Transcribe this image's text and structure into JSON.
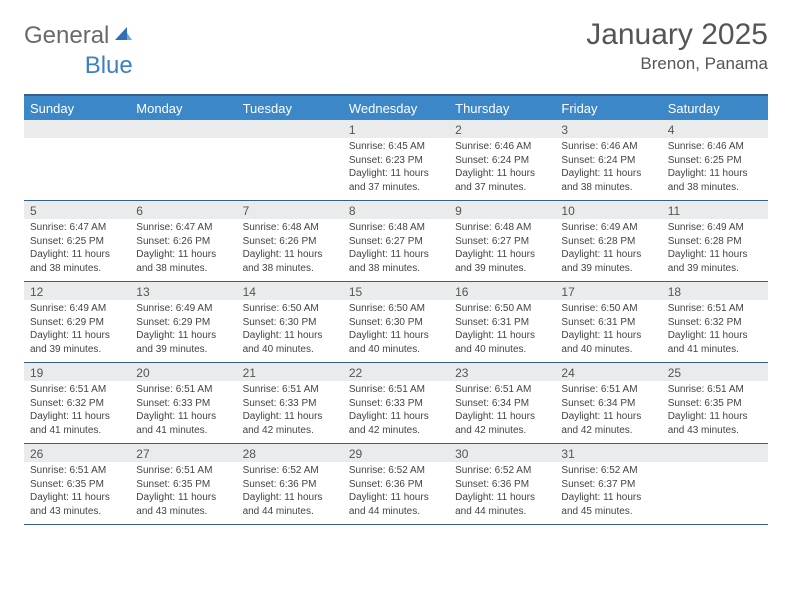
{
  "logo": {
    "part1": "General",
    "part2": "Blue"
  },
  "title": "January 2025",
  "location": "Brenon, Panama",
  "colors": {
    "header_bg": "#3b87c8",
    "header_border_top": "#355f8d",
    "week_divider": "#355f8d",
    "daynum_band_bg": "#e9ebec",
    "text_primary": "#444444",
    "text_muted": "#555555",
    "logo_gray": "#6a6a6a",
    "logo_blue": "#3b7fc4",
    "background": "#ffffff"
  },
  "typography": {
    "title_fontsize": 30,
    "location_fontsize": 17,
    "dayheader_fontsize": 13,
    "daynum_fontsize": 12,
    "body_fontsize": 10
  },
  "day_headers": [
    "Sunday",
    "Monday",
    "Tuesday",
    "Wednesday",
    "Thursday",
    "Friday",
    "Saturday"
  ],
  "labels": {
    "sunrise": "Sunrise:",
    "sunset": "Sunset:",
    "daylight": "Daylight:"
  },
  "weeks": [
    [
      null,
      null,
      null,
      {
        "n": "1",
        "sunrise": "6:45 AM",
        "sunset": "6:23 PM",
        "daylight": "11 hours and 37 minutes."
      },
      {
        "n": "2",
        "sunrise": "6:46 AM",
        "sunset": "6:24 PM",
        "daylight": "11 hours and 37 minutes."
      },
      {
        "n": "3",
        "sunrise": "6:46 AM",
        "sunset": "6:24 PM",
        "daylight": "11 hours and 38 minutes."
      },
      {
        "n": "4",
        "sunrise": "6:46 AM",
        "sunset": "6:25 PM",
        "daylight": "11 hours and 38 minutes."
      }
    ],
    [
      {
        "n": "5",
        "sunrise": "6:47 AM",
        "sunset": "6:25 PM",
        "daylight": "11 hours and 38 minutes."
      },
      {
        "n": "6",
        "sunrise": "6:47 AM",
        "sunset": "6:26 PM",
        "daylight": "11 hours and 38 minutes."
      },
      {
        "n": "7",
        "sunrise": "6:48 AM",
        "sunset": "6:26 PM",
        "daylight": "11 hours and 38 minutes."
      },
      {
        "n": "8",
        "sunrise": "6:48 AM",
        "sunset": "6:27 PM",
        "daylight": "11 hours and 38 minutes."
      },
      {
        "n": "9",
        "sunrise": "6:48 AM",
        "sunset": "6:27 PM",
        "daylight": "11 hours and 39 minutes."
      },
      {
        "n": "10",
        "sunrise": "6:49 AM",
        "sunset": "6:28 PM",
        "daylight": "11 hours and 39 minutes."
      },
      {
        "n": "11",
        "sunrise": "6:49 AM",
        "sunset": "6:28 PM",
        "daylight": "11 hours and 39 minutes."
      }
    ],
    [
      {
        "n": "12",
        "sunrise": "6:49 AM",
        "sunset": "6:29 PM",
        "daylight": "11 hours and 39 minutes."
      },
      {
        "n": "13",
        "sunrise": "6:49 AM",
        "sunset": "6:29 PM",
        "daylight": "11 hours and 39 minutes."
      },
      {
        "n": "14",
        "sunrise": "6:50 AM",
        "sunset": "6:30 PM",
        "daylight": "11 hours and 40 minutes."
      },
      {
        "n": "15",
        "sunrise": "6:50 AM",
        "sunset": "6:30 PM",
        "daylight": "11 hours and 40 minutes."
      },
      {
        "n": "16",
        "sunrise": "6:50 AM",
        "sunset": "6:31 PM",
        "daylight": "11 hours and 40 minutes."
      },
      {
        "n": "17",
        "sunrise": "6:50 AM",
        "sunset": "6:31 PM",
        "daylight": "11 hours and 40 minutes."
      },
      {
        "n": "18",
        "sunrise": "6:51 AM",
        "sunset": "6:32 PM",
        "daylight": "11 hours and 41 minutes."
      }
    ],
    [
      {
        "n": "19",
        "sunrise": "6:51 AM",
        "sunset": "6:32 PM",
        "daylight": "11 hours and 41 minutes."
      },
      {
        "n": "20",
        "sunrise": "6:51 AM",
        "sunset": "6:33 PM",
        "daylight": "11 hours and 41 minutes."
      },
      {
        "n": "21",
        "sunrise": "6:51 AM",
        "sunset": "6:33 PM",
        "daylight": "11 hours and 42 minutes."
      },
      {
        "n": "22",
        "sunrise": "6:51 AM",
        "sunset": "6:33 PM",
        "daylight": "11 hours and 42 minutes."
      },
      {
        "n": "23",
        "sunrise": "6:51 AM",
        "sunset": "6:34 PM",
        "daylight": "11 hours and 42 minutes."
      },
      {
        "n": "24",
        "sunrise": "6:51 AM",
        "sunset": "6:34 PM",
        "daylight": "11 hours and 42 minutes."
      },
      {
        "n": "25",
        "sunrise": "6:51 AM",
        "sunset": "6:35 PM",
        "daylight": "11 hours and 43 minutes."
      }
    ],
    [
      {
        "n": "26",
        "sunrise": "6:51 AM",
        "sunset": "6:35 PM",
        "daylight": "11 hours and 43 minutes."
      },
      {
        "n": "27",
        "sunrise": "6:51 AM",
        "sunset": "6:35 PM",
        "daylight": "11 hours and 43 minutes."
      },
      {
        "n": "28",
        "sunrise": "6:52 AM",
        "sunset": "6:36 PM",
        "daylight": "11 hours and 44 minutes."
      },
      {
        "n": "29",
        "sunrise": "6:52 AM",
        "sunset": "6:36 PM",
        "daylight": "11 hours and 44 minutes."
      },
      {
        "n": "30",
        "sunrise": "6:52 AM",
        "sunset": "6:36 PM",
        "daylight": "11 hours and 44 minutes."
      },
      {
        "n": "31",
        "sunrise": "6:52 AM",
        "sunset": "6:37 PM",
        "daylight": "11 hours and 45 minutes."
      },
      null
    ]
  ]
}
